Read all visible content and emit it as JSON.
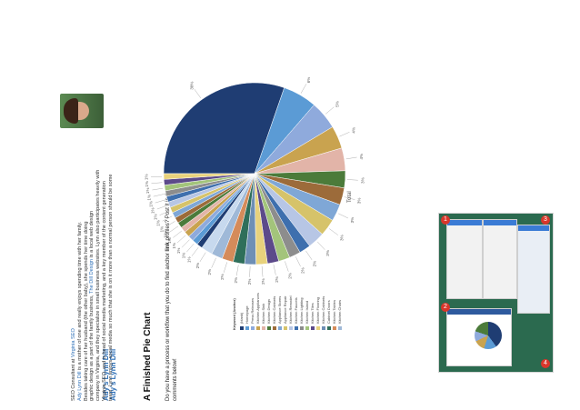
{
  "slide": {
    "title": "A Finished Pie Chart",
    "intro_text_1": "Do you have a process or workflow that you do to find anchor ",
    "intro_bold": "link",
    "intro_text_2": " profiles? Post it in the comments below!",
    "author_heading": "Ady's Lynn Dill",
    "bio_line1_a": "SEO Consultant at ",
    "bio_line1_link": "Virginia SEO",
    "bio_line2_link": "Ady Lynn Dill",
    "bio_line2_rest": " is a mother of one and really enjoys spending time with her family.",
    "bio_line3": "Besides taking care of her husband (the other baby), she spends her time doing",
    "bio_line4_a": "graphic design as a part of the family business, ",
    "bio_line4_link": "The Dill Design",
    "bio_line4_b": " is a local web design",
    "bio_line5": "company in Virginia, and they specialize in small business websites. Lynn also participates heavily with",
    "bio_line6": "Virginia SEO, and is head of social media marketing, and a key member of the content generation",
    "bio_line7": "team. Lynn enjoys social media so much that she is on it more than a normal person should be some"
  },
  "chart_data": {
    "type": "pie",
    "title": "Total",
    "series": [
      {
        "values": [
          30,
          6,
          5,
          4,
          4,
          3,
          3,
          3,
          3,
          3,
          2,
          2,
          2,
          2,
          2,
          2,
          2,
          2,
          2,
          2,
          1,
          1,
          1,
          1,
          1,
          1,
          1,
          1,
          1,
          1,
          1,
          1,
          1,
          1,
          1
        ]
      }
    ],
    "slice_labels": [
      "30%",
      "6%",
      "5%",
      "4%",
      "4%",
      "3%",
      "3%",
      "3%",
      "3%",
      "3%",
      "2%",
      "2%",
      "2%",
      "2%",
      "2%",
      "2%",
      "2%",
      "2%",
      "2%",
      "2%",
      "1%",
      "1%",
      "1%",
      "1%",
      "1%",
      "1%",
      "1%",
      "1%",
      "1%",
      "1%",
      "1%",
      "1%",
      "1%",
      "1%",
      "1%"
    ],
    "legend_title": "Keyword   (Anchor)",
    "legend": [
      "(blank)",
      "Homepage",
      "Press Releases",
      "Kitchen Appliances",
      "Kitchen Sink",
      "Kitchen Design",
      "Kitchen Cabinets",
      "Appliance Stores",
      "Appliance Repair",
      "Kitchen Remodel",
      "Kitchen Faucets",
      "Kitchen Lighting",
      "Kitchen Island",
      "Kitchen Tiles",
      "Kitchen Flooring",
      "Kitchen Cabinets",
      "Cabinet Doors",
      "Kitchen Tables",
      "Kitchen Chairs"
    ],
    "colors": [
      "#1f3d73",
      "#5b9bd5",
      "#8faadc",
      "#c9a34f",
      "#e2b4a8",
      "#4b7b3a",
      "#9c6b3a",
      "#7fa7d6",
      "#d6c36a",
      "#b7c6e5",
      "#3e6fae",
      "#8d8d8d",
      "#a3c47b",
      "#5c4a8a",
      "#e8d27c",
      "#6e8fb5",
      "#2f6f5a",
      "#d58b5a",
      "#9fb9d8",
      "#c7d9ee"
    ]
  },
  "thumbnail": {
    "badge_1": "1",
    "badge_2": "2",
    "badge_3": "3",
    "badge_4": "4"
  }
}
